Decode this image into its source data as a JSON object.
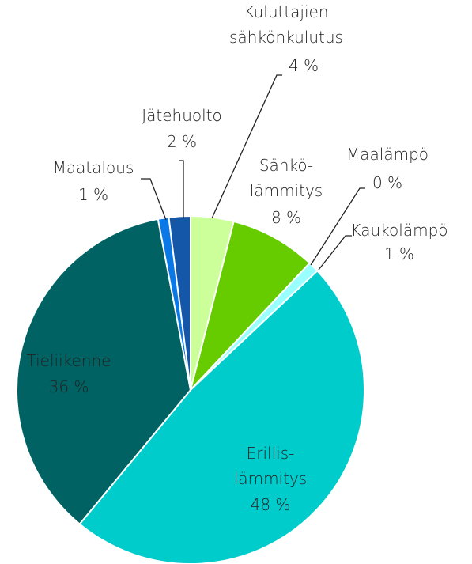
{
  "chart_data": {
    "type": "pie",
    "categories": [
      "Kuluttajien\nsähkönkulutus",
      "Sähkö-\nlämmitys",
      "Maalämpö",
      "Kaukolämpö",
      "Erillis-\nlämmitys",
      "Tieliikenne",
      "Maatalous",
      "Jätehuolto"
    ],
    "values": [
      4,
      8,
      0,
      1,
      48,
      36,
      1,
      2
    ],
    "value_labels": [
      "4 %",
      "8 %",
      "0 %",
      "1 %",
      "48 %",
      "36 %",
      "1 %",
      "2 %"
    ],
    "colors": [
      "#ccff99",
      "#66cc00",
      "#99cccc",
      "#99ffff",
      "#00cccc",
      "#006262",
      "#0a78e6",
      "#1456a8"
    ]
  }
}
